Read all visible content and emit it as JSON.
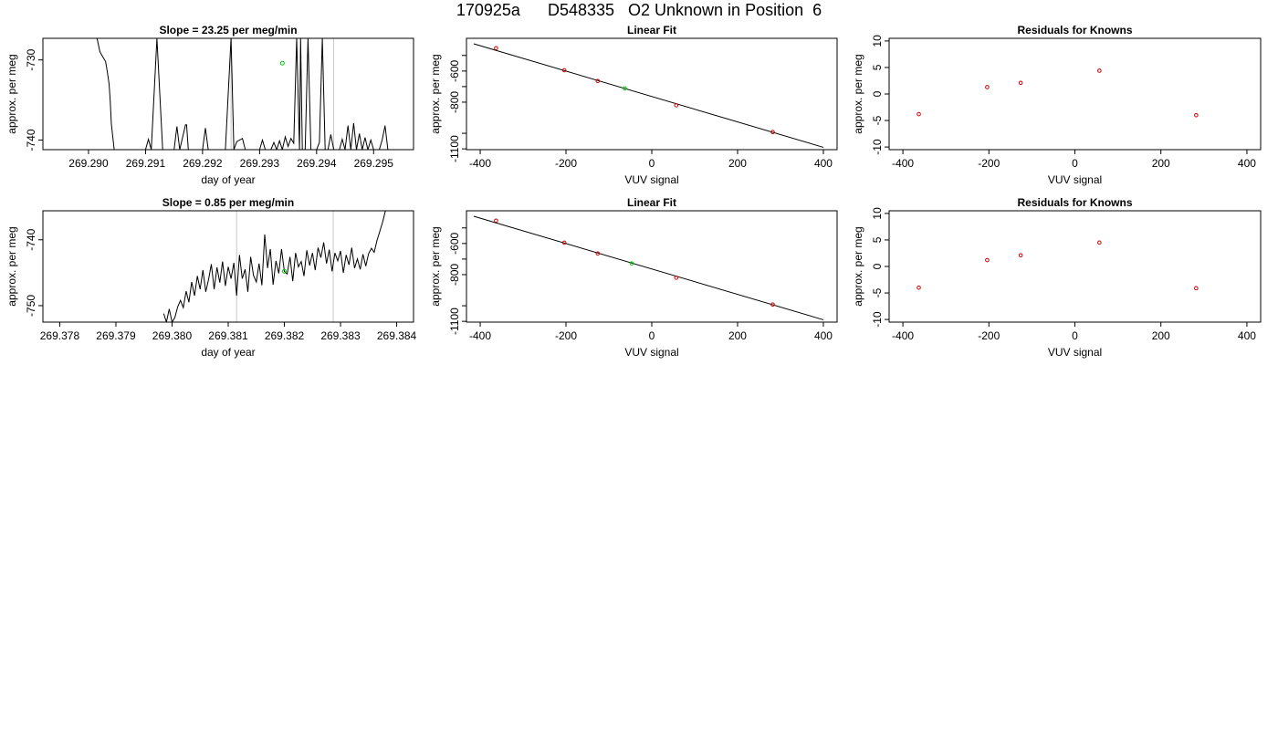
{
  "page_title": "170925a      D548335   O2 Unknown in Position  6",
  "chart_data": [
    {
      "type": "line",
      "title": "Slope =  23.25  per meg/min",
      "xlabel": "day of year",
      "ylabel": "approx. per meg",
      "xlim": [
        269.2892,
        269.2957
      ],
      "ylim": [
        -741.2,
        -727.3
      ],
      "x_ticks": [
        "269.290",
        "269.291",
        "269.292",
        "269.293",
        "269.294",
        "269.295"
      ],
      "x_tick_values": [
        269.29,
        269.291,
        269.292,
        269.293,
        269.294,
        269.295
      ],
      "y_ticks": [
        "-740",
        "-730"
      ],
      "y_tick_values": [
        -740,
        -730
      ],
      "vlines_x": [
        269.2925,
        269.2943
      ],
      "highlight_point": {
        "x": 269.2934,
        "y": -730.4,
        "color": "#00cc00"
      },
      "series_color": "#000000",
      "series": [
        {
          "x": [
            269.29,
            269.29015,
            269.2902,
            269.29025,
            269.2903,
            269.29033,
            269.29036,
            269.29038,
            269.2904,
            269.29045
          ],
          "y": [
            -724,
            -727.3,
            -729.0,
            -729.6,
            -730.2,
            -731.5,
            -733.0,
            -735.0,
            -738.0,
            -741.2
          ]
        },
        {
          "x": [
            269.291,
            269.29105,
            269.2911,
            269.2912,
            269.2913
          ],
          "y": [
            -741.2,
            -739.9,
            -741.2,
            -727.3,
            -741.2
          ]
        },
        {
          "x": [
            269.2915,
            269.29155,
            269.2916,
            269.2917,
            269.29172,
            269.29175,
            269.2918
          ],
          "y": [
            -741.2,
            -738.3,
            -741.2,
            -738.1,
            -738.1,
            -741.2,
            -741.2
          ]
        },
        {
          "x": [
            269.292,
            269.29205,
            269.2921,
            269.2924,
            269.2925,
            269.29255,
            269.2926,
            269.2927,
            269.29275,
            269.2928
          ],
          "y": [
            -741.2,
            -738.5,
            -741.2,
            -741.2,
            -727.3,
            -741.2,
            -740.2,
            -739.8,
            -741.2,
            -741.2
          ]
        },
        {
          "x": [
            269.293,
            269.29305,
            269.2931,
            269.2932,
            269.29325,
            269.2933,
            269.29335,
            269.2934,
            269.29345,
            269.2935,
            269.29355,
            269.2936,
            269.29365,
            269.2937,
            269.29372,
            269.29375,
            269.2938,
            269.29385,
            269.2939,
            269.294,
            269.29405,
            269.2941,
            269.29415,
            269.2942,
            269.29425,
            269.2943
          ],
          "y": [
            -741.2,
            -740.0,
            -741.2,
            -741.2,
            -740.3,
            -741.2,
            -740.1,
            -741.2,
            -739.6,
            -740.8,
            -739.8,
            -740.4,
            -727.3,
            -741.2,
            -727.3,
            -741.2,
            -741.2,
            -727.3,
            -741.2,
            -741.2,
            -740.3,
            -727.3,
            -741.2,
            -741.2,
            -739.3,
            -741.2
          ]
        },
        {
          "x": [
            269.2944,
            269.29445,
            269.2945,
            269.29455,
            269.2946,
            269.29465,
            269.2947,
            269.29475,
            269.2948,
            269.29485,
            269.2949,
            269.29495,
            269.295,
            269.29505,
            269.2951,
            269.29515,
            269.2952,
            269.29525
          ],
          "y": [
            -741.2,
            -739.9,
            -741.2,
            -738.2,
            -741.2,
            -737.9,
            -741.2,
            -739.2,
            -741.2,
            -739.7,
            -741.2,
            -740.0,
            -741.2,
            -741.2,
            -741.2,
            -740.0,
            -738.2,
            -741.2
          ]
        }
      ]
    },
    {
      "type": "scatter",
      "title": "Linear Fit",
      "xlabel": "VUV signal",
      "ylabel": "approx. per meg",
      "xlim": [
        -432,
        432
      ],
      "ylim": [
        -1105,
        -390
      ],
      "x_ticks": [
        "-400",
        "-200",
        "0",
        "200",
        "400"
      ],
      "x_tick_values": [
        -400,
        -200,
        0,
        200,
        400
      ],
      "y_ticks": [
        "-1100",
        "-800",
        "-600"
      ],
      "y_tick_values": [
        -1100,
        -800,
        -600
      ],
      "y_minor_ticks": [
        -1000,
        -700,
        -500
      ],
      "fit_line": {
        "x": [
          -415,
          400
        ],
        "y": [
          -425,
          -1090
        ]
      },
      "known_points": {
        "x": [
          -363,
          -204,
          -126,
          57,
          282
        ],
        "y": [
          -453,
          -595,
          -664,
          -820,
          -992
        ],
        "color": "#cc0000"
      },
      "unknown_point": {
        "x": -63,
        "y": -711,
        "color": "#00cc00"
      }
    },
    {
      "type": "scatter",
      "title": "Residuals for Knowns",
      "xlabel": "VUV signal",
      "ylabel": "approx. per meg",
      "xlim": [
        -432,
        432
      ],
      "ylim": [
        -10.5,
        10.5
      ],
      "x_ticks": [
        "-400",
        "-200",
        "0",
        "200",
        "400"
      ],
      "x_tick_values": [
        -400,
        -200,
        0,
        200,
        400
      ],
      "y_ticks": [
        "-10",
        "-5",
        "0",
        "5",
        "10"
      ],
      "y_tick_values": [
        -10,
        -5,
        0,
        5,
        10
      ],
      "points": {
        "x": [
          -363,
          -204,
          -126,
          57,
          282
        ],
        "y": [
          -3.8,
          1.3,
          2.1,
          4.4,
          -4.0
        ],
        "color": "#cc0000"
      }
    },
    {
      "type": "line",
      "title": "Slope =  0.85  per meg/min",
      "xlabel": "day of year",
      "ylabel": "approx. per meg",
      "xlim": [
        269.3777,
        269.3843
      ],
      "ylim": [
        -752.5,
        -735.6
      ],
      "x_ticks": [
        "269.378",
        "269.379",
        "269.380",
        "269.381",
        "269.382",
        "269.383",
        "269.384"
      ],
      "x_tick_values": [
        269.378,
        269.379,
        269.38,
        269.381,
        269.382,
        269.383,
        269.384
      ],
      "y_ticks": [
        "-750",
        "-740"
      ],
      "y_tick_values": [
        -750,
        -740
      ],
      "vlines_x": [
        269.38115,
        269.38287
      ],
      "highlight_point": {
        "x": 269.382,
        "y": -744.8,
        "color": "#00cc00"
      },
      "series_color": "#000000",
      "series": [
        {
          "x": [
            269.37985,
            269.3799,
            269.37995,
            269.38,
            269.38005,
            269.3801,
            269.38015,
            269.3802,
            269.38025,
            269.3803,
            269.38035,
            269.3804,
            269.38045,
            269.3805,
            269.38055,
            269.3806,
            269.38065,
            269.3807,
            269.38075,
            269.3808,
            269.38085,
            269.3809,
            269.38095,
            269.381,
            269.38105,
            269.3811,
            269.38115,
            269.3812,
            269.38125,
            269.3813,
            269.38135,
            269.3814,
            269.38145,
            269.3815,
            269.38155,
            269.3816,
            269.38165,
            269.3817,
            269.38175,
            269.3818,
            269.38185,
            269.3819,
            269.38195,
            269.382,
            269.38205,
            269.3821,
            269.38215,
            269.3822,
            269.38225,
            269.3823,
            269.38235,
            269.3824,
            269.38245,
            269.3825,
            269.38255,
            269.3826,
            269.38265,
            269.3827,
            269.38275,
            269.3828,
            269.38285,
            269.3829,
            269.38295,
            269.383,
            269.38305,
            269.3831,
            269.38315,
            269.3832,
            269.38325,
            269.3833,
            269.38335,
            269.3834,
            269.38345,
            269.3835,
            269.38355,
            269.3836,
            269.38365,
            269.3837,
            269.38375,
            269.3838
          ],
          "y": [
            -751.2,
            -752.5,
            -750.5,
            -752.5,
            -751.8,
            -750.2,
            -749.2,
            -750.3,
            -747.8,
            -749.5,
            -746.4,
            -748.5,
            -745.5,
            -747.5,
            -744.6,
            -747.9,
            -746.0,
            -743.7,
            -747.5,
            -744.2,
            -746.5,
            -743.3,
            -747.0,
            -744.1,
            -745.9,
            -743.5,
            -748.5,
            -742.3,
            -745.9,
            -744.5,
            -747.9,
            -742.6,
            -745.4,
            -746.4,
            -743.6,
            -746.9,
            -739.2,
            -744.3,
            -741.4,
            -746.8,
            -743.2,
            -745.1,
            -741.4,
            -744.8,
            -745.2,
            -742.6,
            -746.3,
            -742.0,
            -744.1,
            -743.3,
            -745.5,
            -741.6,
            -743.9,
            -742.0,
            -744.6,
            -741.2,
            -742.7,
            -740.4,
            -743.6,
            -741.5,
            -744.8,
            -742.0,
            -743.2,
            -741.7,
            -745.0,
            -742.3,
            -743.8,
            -741.2,
            -744.3,
            -742.9,
            -744.5,
            -742.2,
            -744.0,
            -742.1,
            -741.3,
            -741.9,
            -740.1,
            -738.7,
            -737.3,
            -735.6
          ]
        }
      ]
    },
    {
      "type": "scatter",
      "title": "Linear Fit",
      "xlabel": "VUV signal",
      "ylabel": "approx. per meg",
      "xlim": [
        -432,
        432
      ],
      "ylim": [
        -1105,
        -390
      ],
      "x_ticks": [
        "-400",
        "-200",
        "0",
        "200",
        "400"
      ],
      "x_tick_values": [
        -400,
        -200,
        0,
        200,
        400
      ],
      "y_ticks": [
        "-1100",
        "-800",
        "-600"
      ],
      "y_tick_values": [
        -1100,
        -800,
        -600
      ],
      "y_minor_ticks": [
        -1000,
        -700,
        -500
      ],
      "fit_line": {
        "x": [
          -415,
          400
        ],
        "y": [
          -425,
          -1090
        ]
      },
      "known_points": {
        "x": [
          -363,
          -204,
          -126,
          57,
          282
        ],
        "y": [
          -453,
          -595,
          -664,
          -820,
          -992
        ],
        "color": "#cc0000"
      },
      "unknown_point": {
        "x": -47,
        "y": -728,
        "color": "#00cc00"
      }
    },
    {
      "type": "scatter",
      "title": "Residuals for Knowns",
      "xlabel": "VUV signal",
      "ylabel": "approx. per meg",
      "xlim": [
        -432,
        432
      ],
      "ylim": [
        -10.5,
        10.5
      ],
      "x_ticks": [
        "-400",
        "-200",
        "0",
        "200",
        "400"
      ],
      "x_tick_values": [
        -400,
        -200,
        0,
        200,
        400
      ],
      "y_ticks": [
        "-10",
        "-5",
        "0",
        "5",
        "10"
      ],
      "y_tick_values": [
        -10,
        -5,
        0,
        5,
        10
      ],
      "points": {
        "x": [
          -363,
          -204,
          -126,
          57,
          282
        ],
        "y": [
          -4.0,
          1.2,
          2.1,
          4.5,
          -4.1
        ],
        "color": "#cc0000"
      }
    }
  ]
}
